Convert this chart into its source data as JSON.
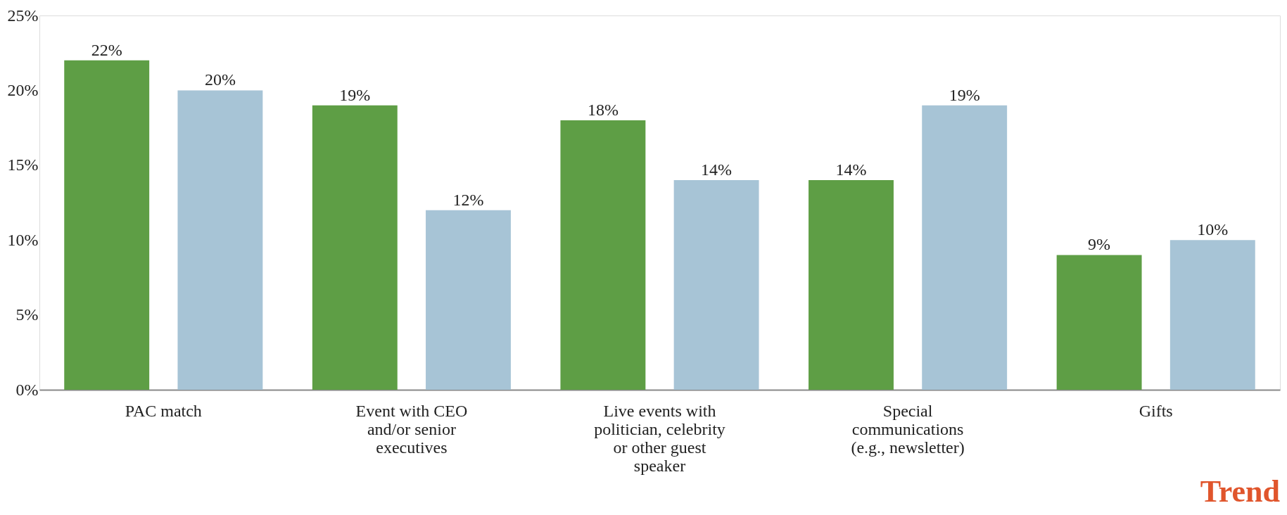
{
  "chart_data": {
    "type": "bar",
    "categories": [
      "PAC match",
      "Event with CEO\nand/or senior\nexecutives",
      "Live events with\npolitician, celebrity\nor other guest\nspeaker",
      "Special\ncommunications\n(e.g., newsletter)",
      "Gifts"
    ],
    "series": [
      {
        "color": "#5e9e45",
        "values": [
          22,
          19,
          18,
          14,
          9
        ],
        "value_labels": [
          "22%",
          "19%",
          "18%",
          "14%",
          "9%"
        ]
      },
      {
        "color": "#a7c4d6",
        "values": [
          20,
          12,
          14,
          19,
          10
        ],
        "value_labels": [
          "20%",
          "12%",
          "14%",
          "19%",
          "10%"
        ]
      }
    ],
    "ylim": [
      0,
      25
    ],
    "yticks": [
      {
        "value": 0,
        "label": "0%"
      },
      {
        "value": 5,
        "label": "5%"
      },
      {
        "value": 10,
        "label": "10%"
      },
      {
        "value": 15,
        "label": "15%"
      },
      {
        "value": 20,
        "label": "20%"
      },
      {
        "value": 25,
        "label": "25%"
      }
    ],
    "grid": false,
    "legend": false,
    "annotations": [
      "Trend"
    ]
  }
}
